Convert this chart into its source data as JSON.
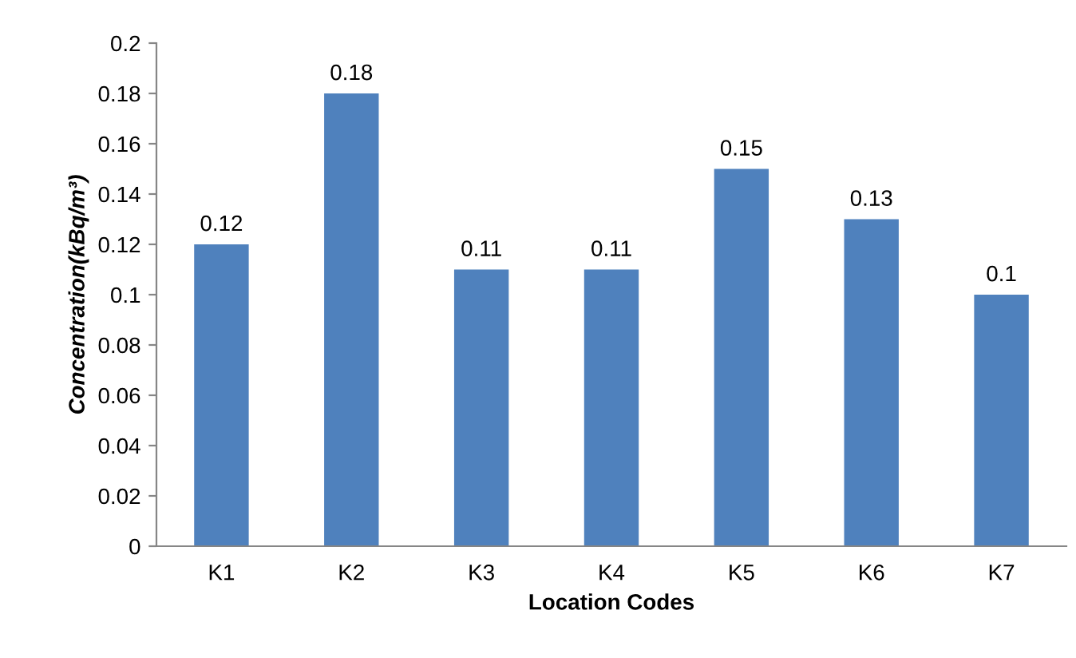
{
  "chart_data": {
    "type": "bar",
    "xlabel": "Location Codes",
    "ylabel": "Concentration(kBq/m³)",
    "categories": [
      "K1",
      "K2",
      "K3",
      "K4",
      "K5",
      "K6",
      "K7"
    ],
    "values": [
      0.12,
      0.18,
      0.11,
      0.11,
      0.15,
      0.13,
      0.1
    ],
    "color": "#4f81bd",
    "ylim": [
      0,
      0.2
    ],
    "yticks": [
      0,
      0.02,
      0.04,
      0.06,
      0.08,
      0.1,
      0.12,
      0.14,
      0.16,
      0.18,
      0.2
    ],
    "data_labels": true,
    "grid": false,
    "legend": false
  }
}
